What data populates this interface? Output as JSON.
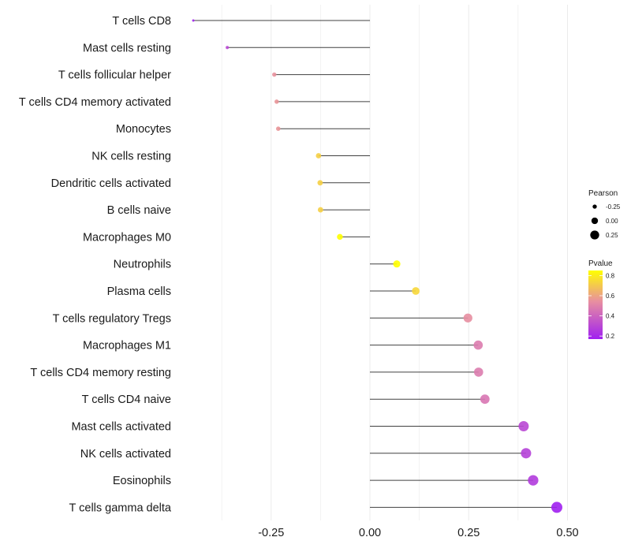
{
  "chart_data": {
    "type": "lollipop",
    "title": "",
    "xlabel": "",
    "ylabel": "",
    "xlim": [
      -0.45,
      0.52
    ],
    "xticks": [
      -0.25,
      0.0,
      0.25,
      0.5
    ],
    "xtick_labels": [
      "-0.25",
      "0.00",
      "0.25",
      "0.50"
    ],
    "grid": true,
    "categories": [
      "T cells CD8",
      "Mast cells resting",
      "T cells follicular helper",
      "T cells CD4 memory activated",
      "Monocytes",
      "NK cells resting",
      "Dendritic cells activated",
      "B cells naive",
      "Macrophages M0",
      "Neutrophils",
      "Plasma cells",
      "T cells regulatory  Tregs ",
      "Macrophages M1",
      "T cells CD4 memory resting",
      "T cells CD4 naive",
      "Mast cells activated",
      "NK cells activated",
      "Eosinophils",
      "T cells gamma delta"
    ],
    "series": [
      {
        "name": "Pearson",
        "values": [
          -0.447,
          -0.361,
          -0.242,
          -0.236,
          -0.232,
          -0.13,
          -0.126,
          -0.125,
          -0.076,
          0.068,
          0.116,
          0.248,
          0.274,
          0.275,
          0.291,
          0.389,
          0.395,
          0.413,
          0.473
        ]
      },
      {
        "name": "Pvalue",
        "values": [
          0.18,
          0.3,
          0.55,
          0.56,
          0.56,
          0.72,
          0.72,
          0.72,
          0.85,
          0.85,
          0.74,
          0.54,
          0.48,
          0.48,
          0.46,
          0.3,
          0.28,
          0.26,
          0.17
        ]
      }
    ],
    "legend": {
      "placement": "right",
      "size_legend": {
        "title": "Pearson",
        "breaks": [
          -0.25,
          0.0,
          0.25
        ],
        "labels": [
          "-0.25",
          "0.00",
          "0.25"
        ]
      },
      "color_legend": {
        "title": "Pvalue",
        "range": [
          0.17,
          0.85
        ],
        "breaks": [
          0.8,
          0.6,
          0.4,
          0.2
        ],
        "labels": [
          "0.8",
          "0.6",
          "0.4",
          "0.2"
        ],
        "colors": {
          "low": "#A020F0",
          "mid": "#E88FA0",
          "high": "#FFFF00"
        }
      }
    },
    "colors": {
      "segment": "#000000",
      "grid": "#ebebeb",
      "text": "#1a1a1a"
    }
  }
}
